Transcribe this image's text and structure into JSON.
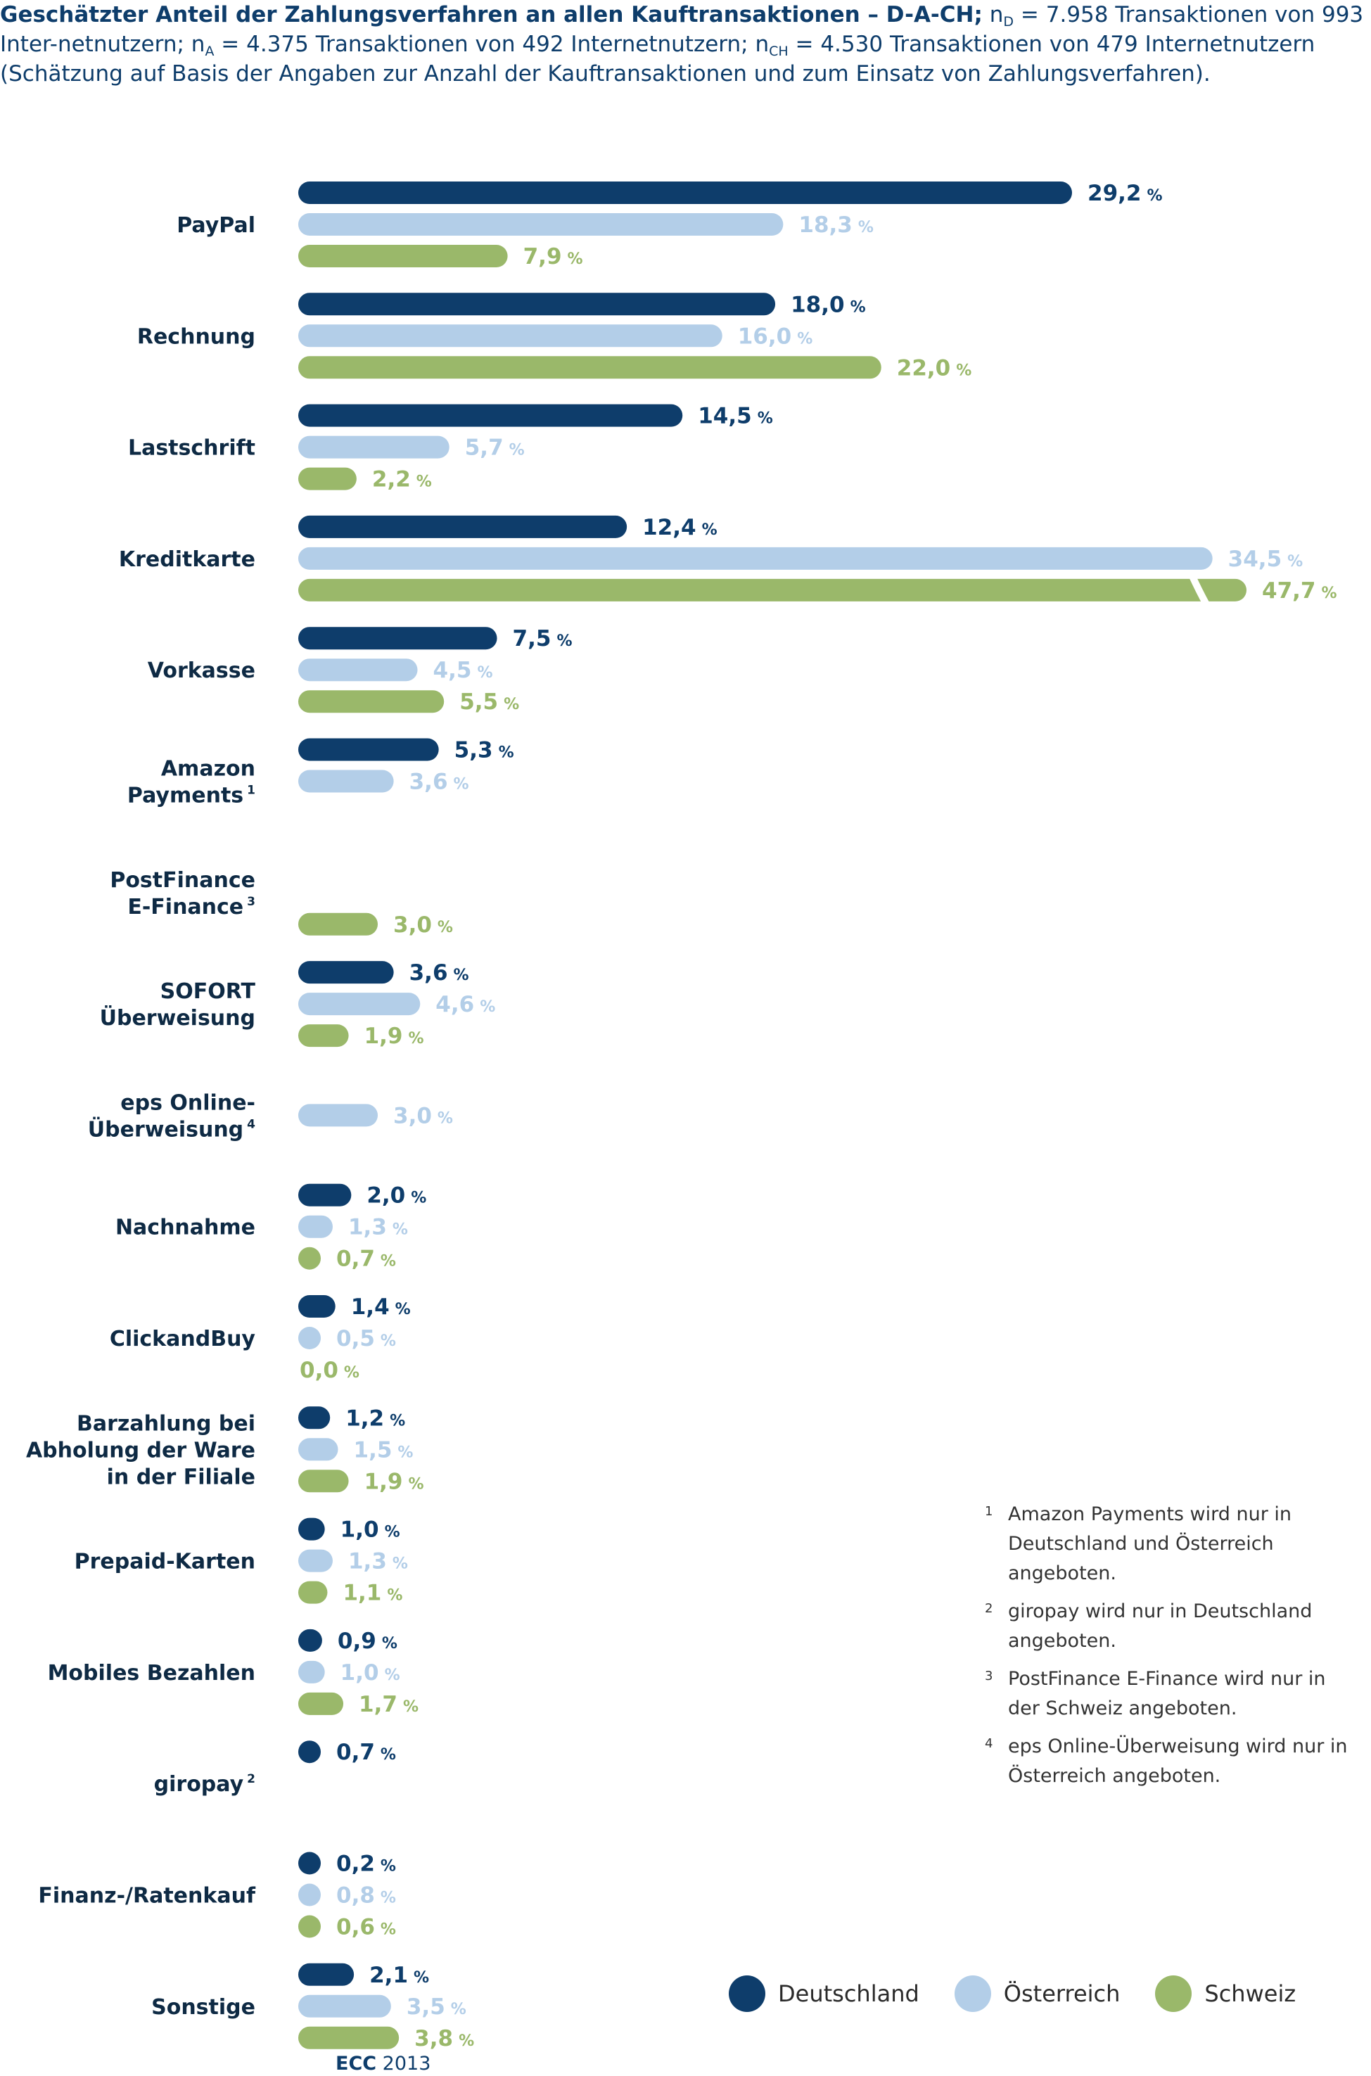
{
  "header": {
    "title": "Geschätzter Anteil der Zahlungsverfahren an allen Kauftransaktionen – D-A-CH;",
    "n_d_letter": "n",
    "n_d_sub": "D",
    "n_d_text": " = 7.958 Transaktionen von 993 Inter-netnutzern;",
    "n_a_letter": "n",
    "n_a_sub": "A",
    "n_a_text": " = 4.375 Transaktionen von 492 Internetnutzern;",
    "n_ch_letter": "n",
    "n_ch_sub": "CH",
    "n_ch_text": " = 4.530 Transaktionen von 479 Internetnutzern (Schätzung auf Basis der Angaben zur Anzahl der Kauftransaktionen und zum Einsatz von Zahlungsverfahren)."
  },
  "chart_data": {
    "type": "bar",
    "orientation": "horizontal",
    "unit": "%",
    "categories": [
      {
        "lines": [
          "PayPal"
        ],
        "sup": ""
      },
      {
        "lines": [
          "Rechnung"
        ],
        "sup": ""
      },
      {
        "lines": [
          "Lastschrift"
        ],
        "sup": ""
      },
      {
        "lines": [
          "Kreditkarte"
        ],
        "sup": ""
      },
      {
        "lines": [
          "Vorkasse"
        ],
        "sup": ""
      },
      {
        "lines": [
          "Amazon",
          "Payments"
        ],
        "sup": "1"
      },
      {
        "lines": [
          "PostFinance",
          "E-Finance"
        ],
        "sup": "3"
      },
      {
        "lines": [
          "SOFORT",
          "Überweisung"
        ],
        "sup": ""
      },
      {
        "lines": [
          "eps Online-",
          "Überweisung"
        ],
        "sup": "4"
      },
      {
        "lines": [
          "Nachnahme"
        ],
        "sup": ""
      },
      {
        "lines": [
          "ClickandBuy"
        ],
        "sup": ""
      },
      {
        "lines": [
          "Barzahlung bei",
          "Abholung der Ware",
          "in der Filiale"
        ],
        "sup": ""
      },
      {
        "lines": [
          "Prepaid-Karten"
        ],
        "sup": ""
      },
      {
        "lines": [
          "Mobiles Bezahlen"
        ],
        "sup": ""
      },
      {
        "lines": [
          "giropay"
        ],
        "sup": "2"
      },
      {
        "lines": [
          "Finanz-/Ratenkauf"
        ],
        "sup": ""
      },
      {
        "lines": [
          "Sonstige"
        ],
        "sup": ""
      }
    ],
    "series": [
      {
        "name": "Deutschland",
        "color": "#0e3d6b",
        "values": [
          29.2,
          18.0,
          14.5,
          12.4,
          7.5,
          5.3,
          null,
          3.6,
          null,
          2.0,
          1.4,
          1.2,
          1.0,
          0.9,
          0.7,
          0.2,
          2.1
        ],
        "labels": [
          "29,2",
          "18,0",
          "14,5",
          "12,4",
          "7,5",
          "5,3",
          "",
          "3,6",
          "",
          "2,0",
          "1,4",
          "1,2",
          "1,0",
          "0,9",
          "0,7",
          "0,2",
          "2,1"
        ]
      },
      {
        "name": "Österreich",
        "color": "#b3cee8",
        "values": [
          18.3,
          16.0,
          5.7,
          34.5,
          4.5,
          3.6,
          null,
          4.6,
          3.0,
          1.3,
          0.5,
          1.5,
          1.3,
          1.0,
          null,
          0.8,
          3.5
        ],
        "labels": [
          "18,3",
          "16,0",
          "5,7",
          "34,5",
          "4,5",
          "3,6",
          "",
          "4,6",
          "3,0",
          "1,3",
          "0,5",
          "1,5",
          "1,3",
          "1,0",
          "",
          "0,8",
          "3,5"
        ]
      },
      {
        "name": "Schweiz",
        "color": "#9ab86a",
        "values": [
          7.9,
          22.0,
          2.2,
          47.7,
          5.5,
          null,
          3.0,
          1.9,
          null,
          0.7,
          0.0,
          1.9,
          1.1,
          1.7,
          null,
          0.6,
          3.8
        ],
        "labels": [
          "7,9",
          "22,0",
          "2,2",
          "47,7",
          "5,5",
          "",
          "3,0",
          "1,9",
          "",
          "0,7",
          "0,0",
          "1,9",
          "1,1",
          "1,7",
          "",
          "0,6",
          "3,8"
        ]
      }
    ],
    "axis_break": {
      "category": "Kreditkarte",
      "series": "Schweiz"
    },
    "legend_position": "bottom-right",
    "grid": false
  },
  "footnotes": [
    {
      "mark": "1",
      "text": "Amazon Payments wird nur in Deutschland und Österreich angeboten."
    },
    {
      "mark": "2",
      "text": "giropay wird nur in Deutschland angeboten."
    },
    {
      "mark": "3",
      "text": "PostFinance E-Finance wird nur in der Schweiz angeboten."
    },
    {
      "mark": "4",
      "text": "eps Online-Überweisung wird nur in Österreich angeboten."
    }
  ],
  "legend": [
    "Deutschland",
    "Österreich",
    "Schweiz"
  ],
  "source": "ECC 2013",
  "source_bold": "ECC",
  "source_rest": " 2013"
}
